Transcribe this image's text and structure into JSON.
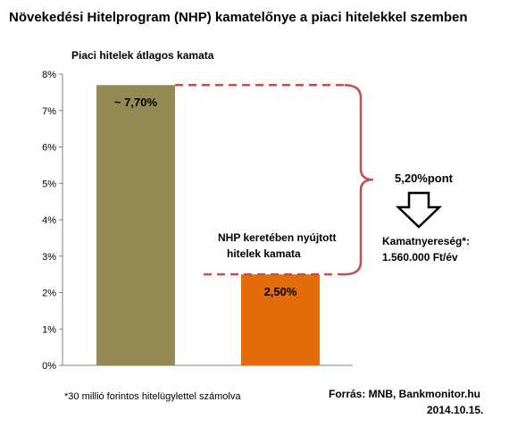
{
  "chart_data": {
    "type": "bar",
    "title": "Növekedési Hitelprogram  (NHP) kamatelőnye  a piaci hitelekkel szemben",
    "categories": [
      "Piaci hitelek átlagos kamata",
      "NHP keretében nyújtott hitelek kamata"
    ],
    "values": [
      7.7,
      2.5
    ],
    "value_labels": [
      "~ 7,70%",
      "2,50%"
    ],
    "bar_labels": {
      "market": "Piaci hitelek átlagos kamata",
      "nhp_line1": "NHP keretében nyújtott",
      "nhp_line2": "hitelek kamata"
    },
    "colors": [
      "#948a54",
      "#e46c0a"
    ],
    "ylim": [
      0,
      8
    ],
    "yticks": [
      "0%",
      "1%",
      "2%",
      "3%",
      "4%",
      "5%",
      "6%",
      "7%",
      "8%"
    ],
    "grid": false,
    "difference": {
      "label": "5,20%pont",
      "savings_line1": "Kamatnyereség*:",
      "savings_line2": "1.560.000 Ft/év",
      "bracket_color": "#c0504d"
    },
    "footnote": "*30 millió forintos hitelügylettel számolva",
    "source": "Forrás: MNB, Bankmonitor.hu",
    "date": "2014.10.15."
  }
}
